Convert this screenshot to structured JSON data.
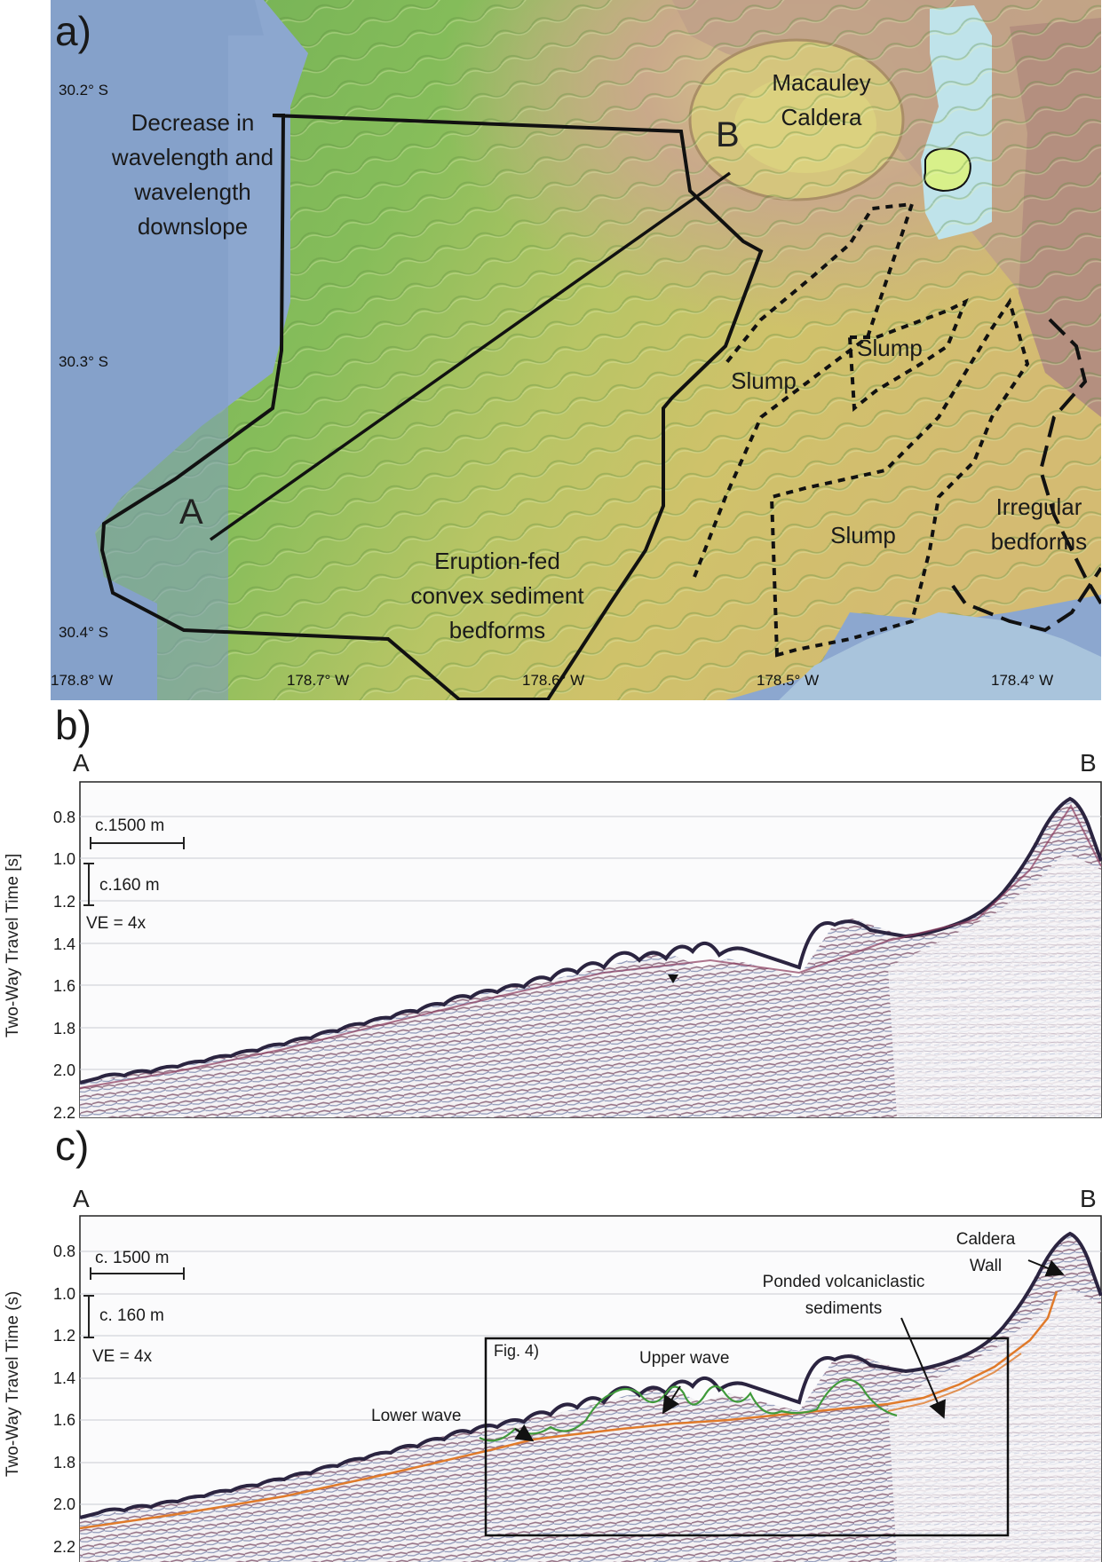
{
  "panel_a": {
    "letter": "a)",
    "point_a": "A",
    "point_b": "B",
    "labels": {
      "decrease": [
        "Decrease in",
        "wavelength and",
        "wavelength",
        "downslope"
      ],
      "caldera": [
        "Macauley",
        "Caldera"
      ],
      "slump": "Slump",
      "irregular": [
        "Irregular",
        "bedforms"
      ],
      "eruption": [
        "Eruption-fed",
        "convex sediment",
        "bedforms"
      ]
    },
    "latitudes": [
      "30.2° S",
      "30.3° S",
      "30.4° S"
    ],
    "longitudes": [
      "178.8° W",
      "178.7° W",
      "178.6° W",
      "178.5° W",
      "178.4° W"
    ]
  },
  "panel_b": {
    "letter": "b)",
    "left": "A",
    "right": "B",
    "ylabel": "Two-Way Travel Time [s]",
    "yticks": [
      "0.8",
      "1.0",
      "1.2",
      "1.4",
      "1.6",
      "1.8",
      "2.0",
      "2.2"
    ],
    "scale_h": "c.1500 m",
    "scale_v": "c.160 m",
    "ve": "VE = 4x"
  },
  "panel_c": {
    "letter": "c)",
    "left": "A",
    "right": "B",
    "ylabel": "Two-Way Travel Time (s)",
    "yticks": [
      "0.8",
      "1.0",
      "1.2",
      "1.4",
      "1.6",
      "1.8",
      "2.0",
      "2.2"
    ],
    "scale_h": "c. 1500 m",
    "scale_v": "c. 160 m",
    "ve": "VE = 4x",
    "box_label": "Fig. 4)",
    "annotations": {
      "caldera_wall": [
        "Caldera",
        "Wall"
      ],
      "ponded": [
        "Ponded volcaniclastic",
        "sediments"
      ],
      "upper_wave": "Upper wave",
      "lower_wave": "Lower wave"
    }
  },
  "colors": {
    "deep_sea": "#7f9cc6",
    "shelf_green": "#7fb85a",
    "mid_yellow": "#c7c46a",
    "high_brown": "#b8907f",
    "lake": "#bfe3ea",
    "island": "#d8f08a",
    "horizon_orange": "#e07a2a",
    "horizon_green": "#3f9a3a"
  }
}
